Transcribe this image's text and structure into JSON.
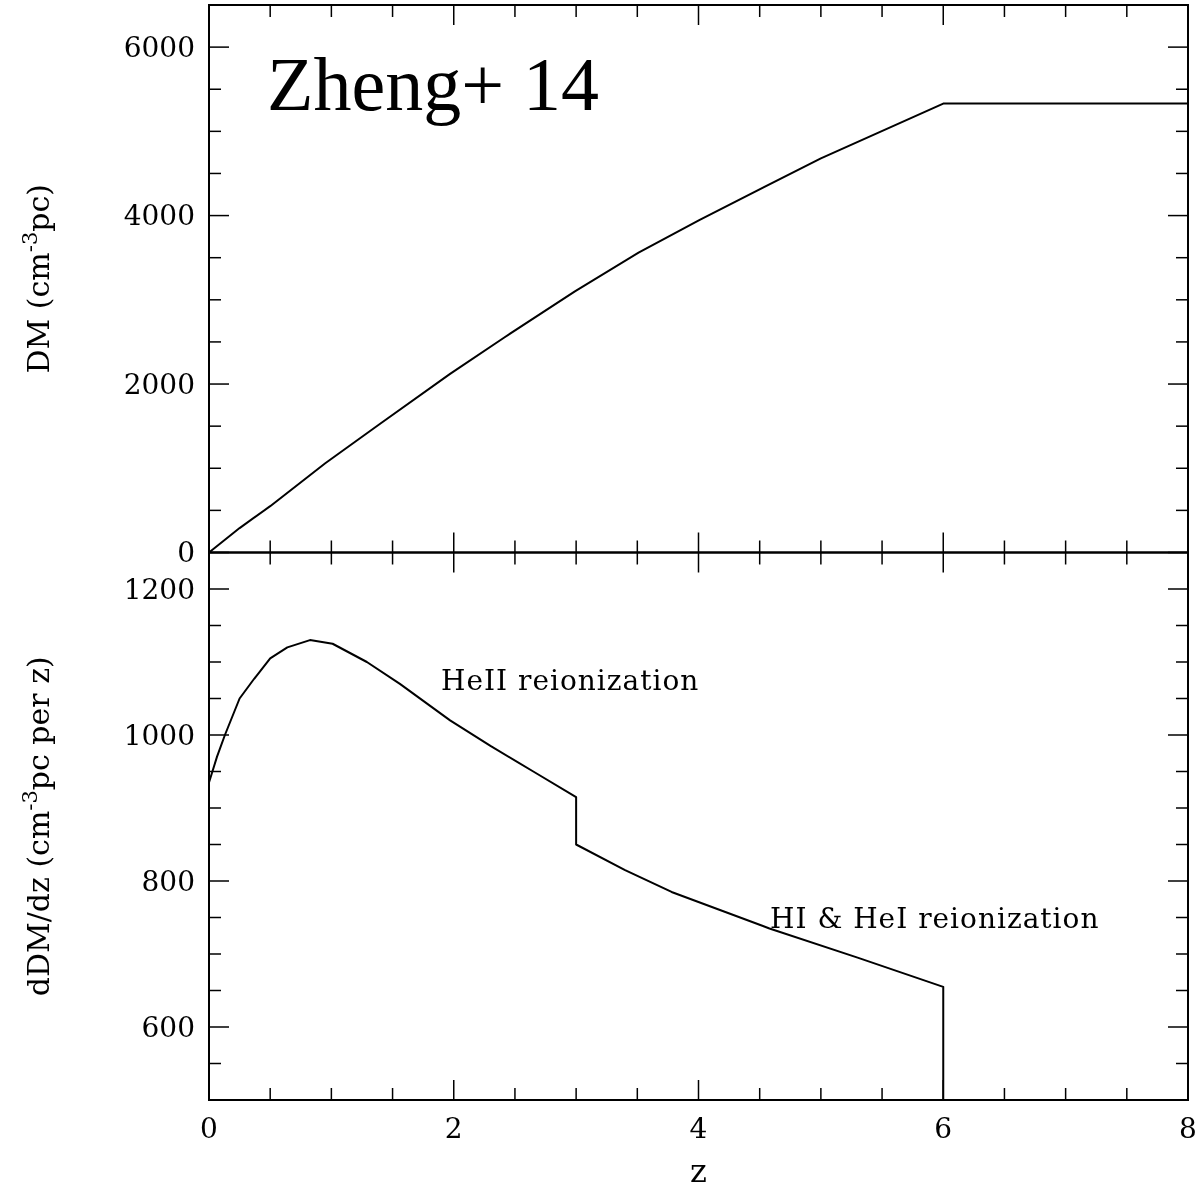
{
  "chart_data": [
    {
      "type": "line",
      "title": "Zheng+ 14",
      "ylabel": "DM (cm$^{-3}$pc)",
      "tick_labels": "y",
      "series": [
        {
          "color": "#000000",
          "x": [
            0,
            0.25,
            0.5,
            0.95,
            1.39,
            1.97,
            2.41,
            2.99,
            3.51,
            4.01,
            5,
            6,
            8
          ],
          "values": [
            0,
            290,
            550,
            1060,
            1520,
            2120,
            2550,
            3100,
            3560,
            3950,
            4680,
            5330,
            5330
          ]
        }
      ],
      "xlim": [
        0,
        8
      ],
      "xticks": [
        0,
        {
          "value": 0.5,
          "label": null
        },
        {
          "value": 1,
          "label": null
        },
        {
          "value": 1.5,
          "label": null
        },
        2,
        {
          "value": 2.5,
          "label": null
        },
        {
          "value": 3,
          "label": null
        },
        {
          "value": 3.5,
          "label": null
        },
        4,
        {
          "value": 4.5,
          "label": null
        },
        {
          "value": 5,
          "label": null
        },
        {
          "value": 5.5,
          "label": null
        },
        6,
        {
          "value": 6.5,
          "label": null
        },
        {
          "value": 7,
          "label": null
        },
        {
          "value": 7.5,
          "label": null
        },
        8
      ],
      "ylim": [
        0,
        6500
      ],
      "yticks": [
        0,
        {
          "value": 500,
          "label": null
        },
        {
          "value": 1000,
          "label": null
        },
        {
          "value": 1500,
          "label": null
        },
        2000,
        {
          "value": 2500,
          "label": null
        },
        {
          "value": 3000,
          "label": null
        },
        {
          "value": 3500,
          "label": null
        },
        4000,
        {
          "value": 4500,
          "label": null
        },
        {
          "value": 5000,
          "label": null
        },
        {
          "value": 5500,
          "label": null
        },
        6000
      ],
      "grid": false,
      "marker": "none",
      "line_style": "solid"
    },
    {
      "type": "line",
      "xlabel": "z",
      "ylabel": "dDM/dz (cm$^{-3}$pc per z)",
      "series": [
        {
          "color": "#000000",
          "x": [
            0,
            0.065,
            0.13,
            0.25,
            0.36,
            0.5,
            0.64,
            0.825,
            1.01,
            1.29,
            1.56,
            1.97,
            2.3,
            2.65,
            3,
            3,
            3.4,
            3.78,
            4.58,
            5.3,
            6,
            6
          ],
          "values": [
            935,
            970,
            1000,
            1050,
            1075,
            1105,
            1120,
            1130,
            1125,
            1100,
            1070,
            1020,
            985,
            950,
            915,
            850,
            815,
            785,
            735,
            695,
            655,
            500
          ]
        }
      ],
      "annotations": [
        "HeII reionization",
        "HI & HeI reionization"
      ],
      "xlim": [
        0,
        8
      ],
      "xticks": [
        0,
        {
          "value": 0.5,
          "label": null
        },
        {
          "value": 1,
          "label": null
        },
        {
          "value": 1.5,
          "label": null
        },
        2,
        {
          "value": 2.5,
          "label": null
        },
        {
          "value": 3,
          "label": null
        },
        {
          "value": 3.5,
          "label": null
        },
        4,
        {
          "value": 4.5,
          "label": null
        },
        {
          "value": 5,
          "label": null
        },
        {
          "value": 5.5,
          "label": null
        },
        6,
        {
          "value": 6.5,
          "label": null
        },
        {
          "value": 7,
          "label": null
        },
        {
          "value": 7.5,
          "label": null
        },
        8
      ],
      "ylim": [
        500,
        1250
      ],
      "yticks": [
        {
          "value": 550,
          "label": null
        },
        600,
        {
          "value": 650,
          "label": null
        },
        {
          "value": 700,
          "label": null
        },
        {
          "value": 750,
          "label": null
        },
        800,
        {
          "value": 850,
          "label": null
        },
        {
          "value": 900,
          "label": null
        },
        {
          "value": 950,
          "label": null
        },
        1000,
        {
          "value": 1050,
          "label": null
        },
        {
          "value": 1100,
          "label": null
        },
        {
          "value": 1150,
          "label": null
        },
        1200
      ],
      "grid": false,
      "marker": "none",
      "line_style": "solid"
    }
  ]
}
